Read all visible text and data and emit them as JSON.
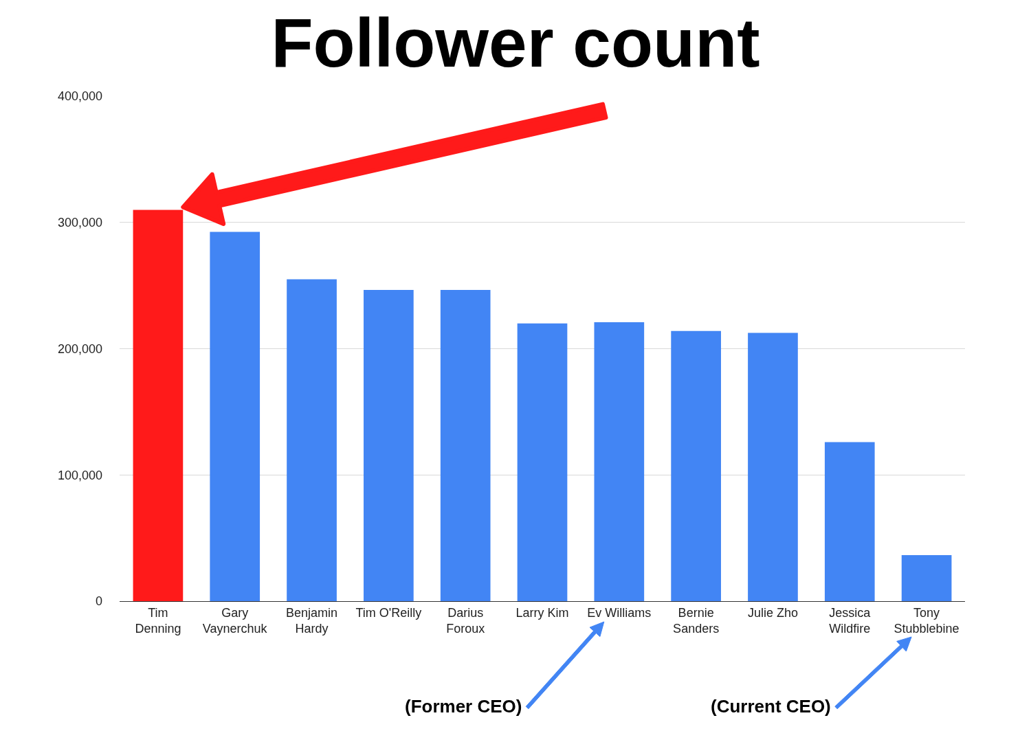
{
  "chart_data": {
    "type": "bar",
    "title": "Follower count",
    "categories": [
      "Tim Denning",
      "Gary Vaynerchuk",
      "Benjamin Hardy",
      "Tim O'Reilly",
      "Darius Foroux",
      "Larry Kim",
      "Ev Williams",
      "Bernie Sanders",
      "Julie Zho",
      "Jessica Wildfire",
      "Tony Stubblebine"
    ],
    "values": [
      310000,
      292500,
      255000,
      246500,
      246500,
      220000,
      221000,
      214000,
      212500,
      126000,
      36500
    ],
    "colors": [
      "#ff1a1a",
      "#4285f4",
      "#4285f4",
      "#4285f4",
      "#4285f4",
      "#4285f4",
      "#4285f4",
      "#4285f4",
      "#4285f4",
      "#4285f4",
      "#4285f4"
    ],
    "ylim": [
      0,
      400000
    ],
    "yticks": [
      0,
      {
        "value": 100000,
        "label": "100,000"
      },
      {
        "value": 200000,
        "label": "200,000"
      },
      {
        "value": 300000,
        "label": "300,000"
      },
      {
        "value": 400000,
        "label": "400,000"
      }
    ],
    "grid": "y",
    "annotations": [
      "(Former CEO)",
      "(Current CEO)"
    ]
  }
}
